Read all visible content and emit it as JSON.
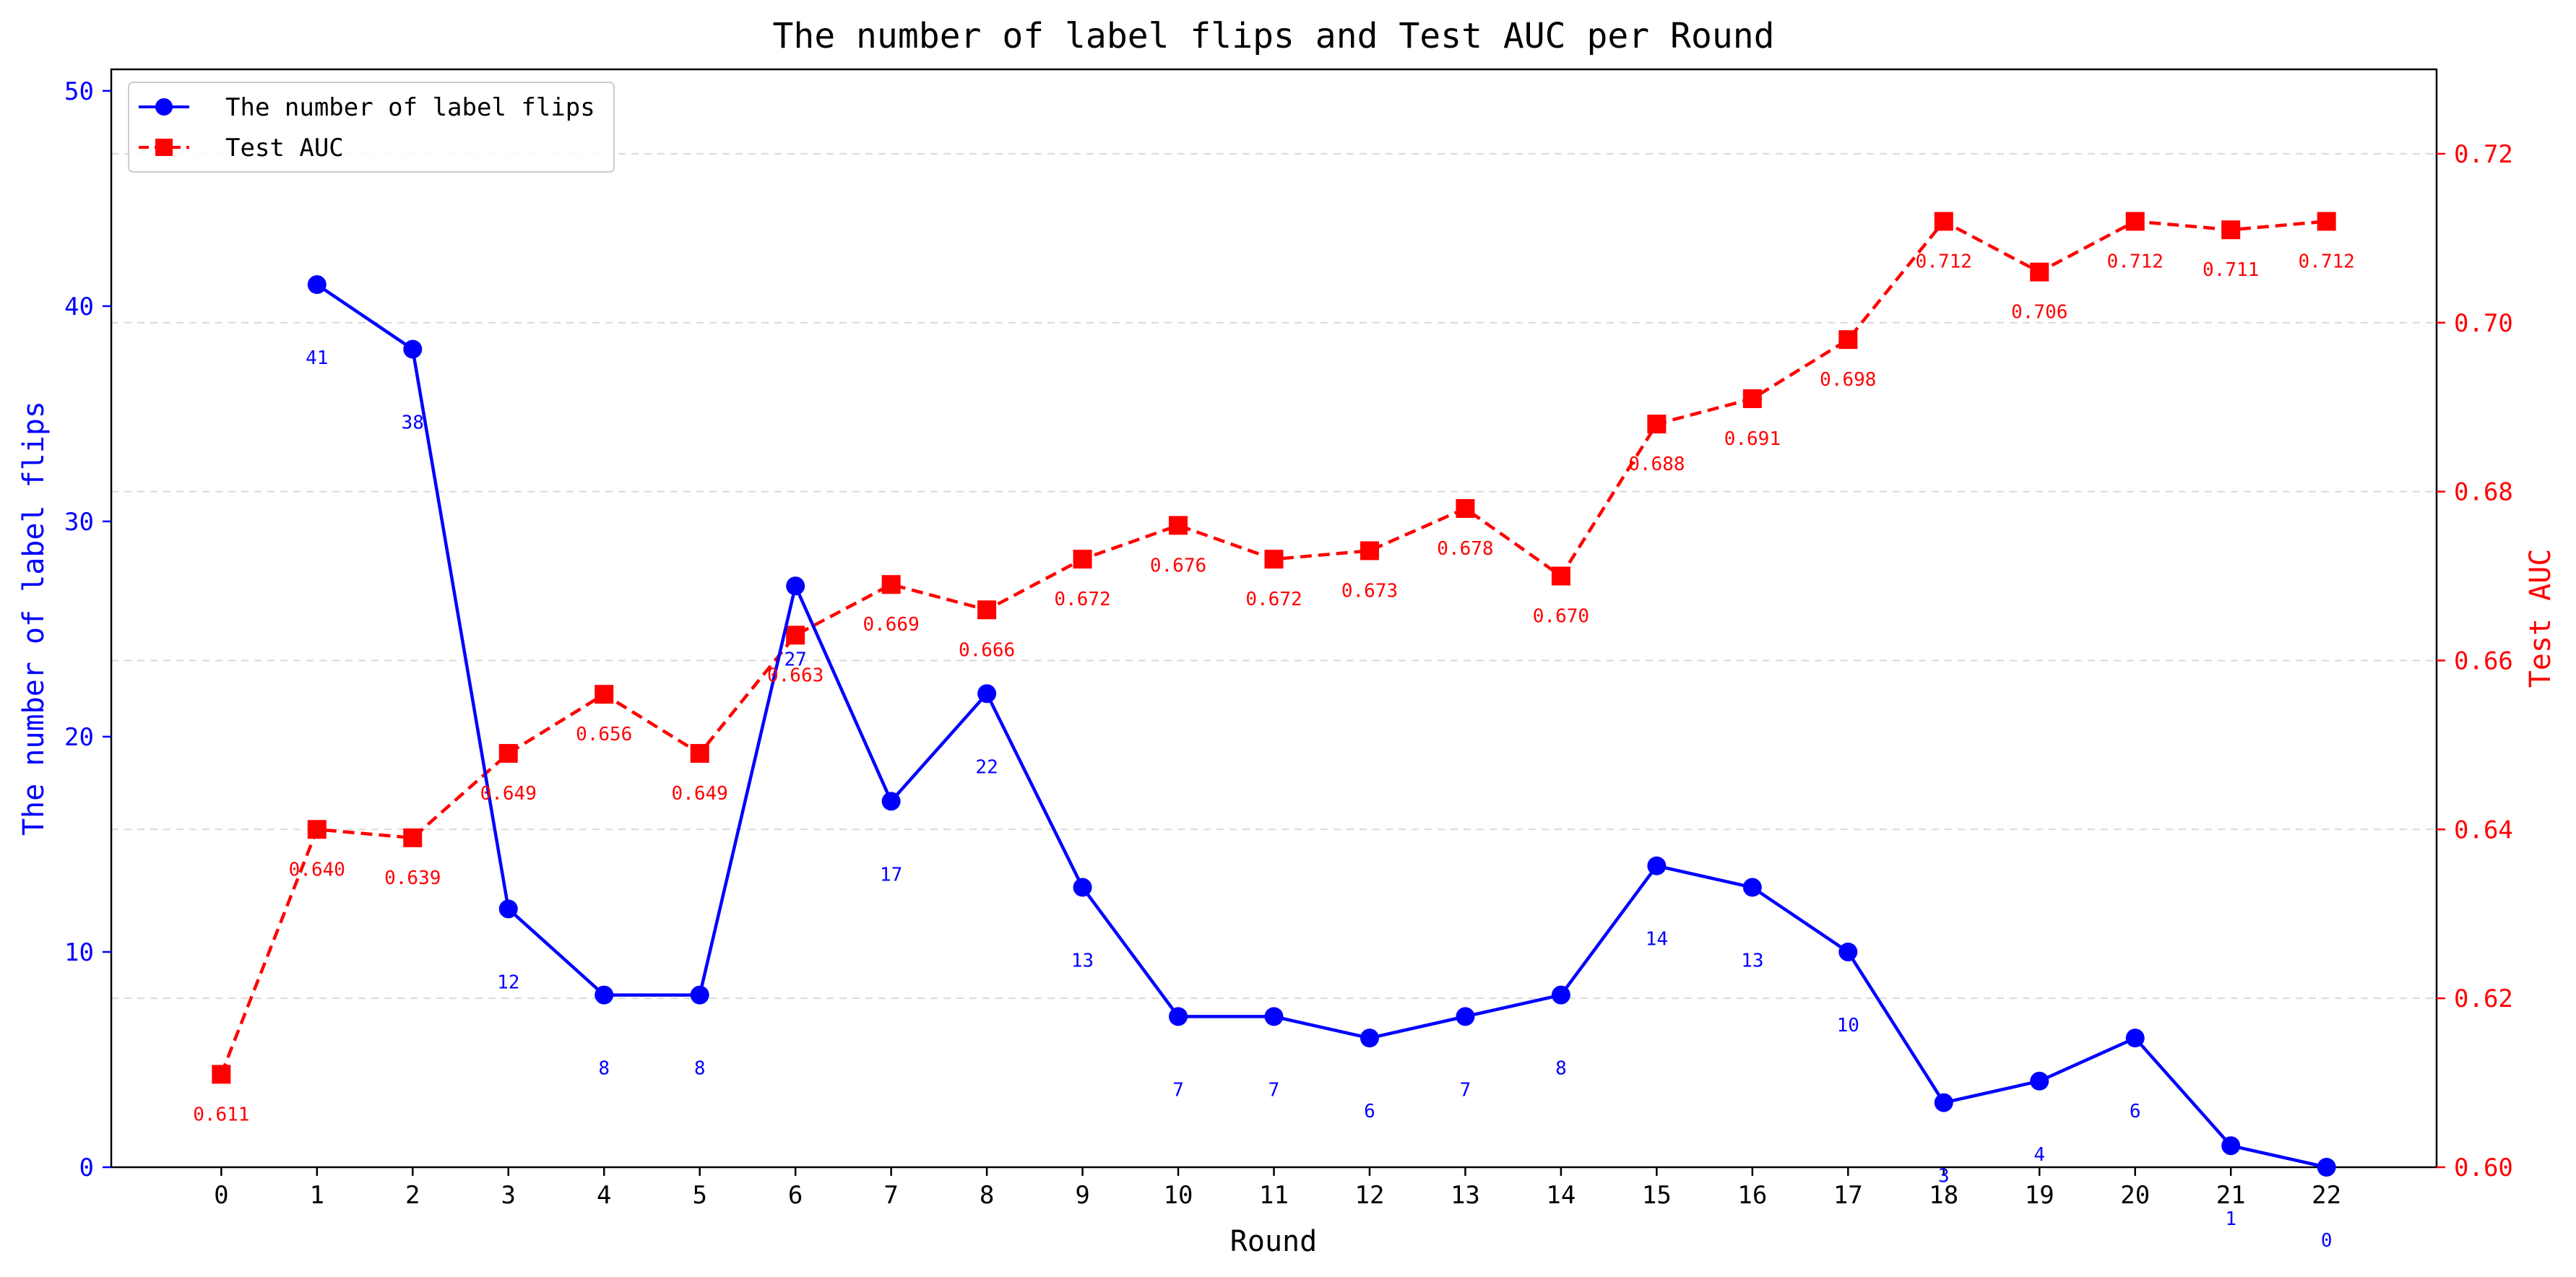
{
  "chart_data": {
    "type": "line",
    "title": "The number of label flips and Test AUC per Round",
    "xlabel": "Round",
    "x": [
      0,
      1,
      2,
      3,
      4,
      5,
      6,
      7,
      8,
      9,
      10,
      11,
      12,
      13,
      14,
      15,
      16,
      17,
      18,
      19,
      20,
      21,
      22
    ],
    "xlim": [
      -1.15,
      23.15
    ],
    "grid": "horizontal dashed (right axis)",
    "legend_position": "upper-left",
    "axes": {
      "left": {
        "label": "The number of label flips",
        "lim": [
          0,
          51
        ],
        "ticks": [
          0,
          10,
          20,
          30,
          40,
          50
        ],
        "color": "#0000ff"
      },
      "right": {
        "label": "Test AUC",
        "lim": [
          0.6,
          0.73
        ],
        "ticks": [
          "0.60",
          "0.62",
          "0.64",
          "0.66",
          "0.68",
          "0.70",
          "0.72"
        ],
        "color": "#ff0000"
      }
    },
    "series": [
      {
        "name": "The number of label flips",
        "axis": "left",
        "color": "#0000ff",
        "line_style": "solid",
        "marker": "circle",
        "x": [
          1,
          2,
          3,
          4,
          5,
          6,
          7,
          8,
          9,
          10,
          11,
          12,
          13,
          14,
          15,
          16,
          17,
          18,
          19,
          20,
          21,
          22
        ],
        "values": [
          41,
          38,
          12,
          8,
          8,
          27,
          17,
          22,
          13,
          7,
          7,
          6,
          7,
          8,
          14,
          13,
          10,
          3,
          4,
          6,
          1,
          0
        ],
        "labels": [
          "41",
          "38",
          "12",
          "8",
          "8",
          "27",
          "17",
          "22",
          "13",
          "7",
          "7",
          "6",
          "7",
          "8",
          "14",
          "13",
          "10",
          "3",
          "4",
          "6",
          "1",
          "0"
        ]
      },
      {
        "name": "Test AUC",
        "axis": "right",
        "color": "#ff0000",
        "line_style": "dashed",
        "marker": "square",
        "x": [
          0,
          1,
          2,
          3,
          4,
          5,
          6,
          7,
          8,
          9,
          10,
          11,
          12,
          13,
          14,
          15,
          16,
          17,
          18,
          19,
          20,
          21,
          22
        ],
        "values": [
          0.611,
          0.64,
          0.639,
          0.649,
          0.656,
          0.649,
          0.663,
          0.669,
          0.666,
          0.672,
          0.676,
          0.672,
          0.673,
          0.678,
          0.67,
          0.688,
          0.691,
          0.698,
          0.712,
          0.706,
          0.712,
          0.711,
          0.712
        ],
        "labels": [
          "0.611",
          "0.640",
          "0.639",
          "0.649",
          "0.656",
          "0.649",
          "0.663",
          "0.669",
          "0.666",
          "0.672",
          "0.676",
          "0.672",
          "0.673",
          "0.678",
          "0.670",
          "0.688",
          "0.691",
          "0.698",
          "0.712",
          "0.706",
          "0.712",
          "0.711",
          "0.712"
        ]
      }
    ]
  }
}
